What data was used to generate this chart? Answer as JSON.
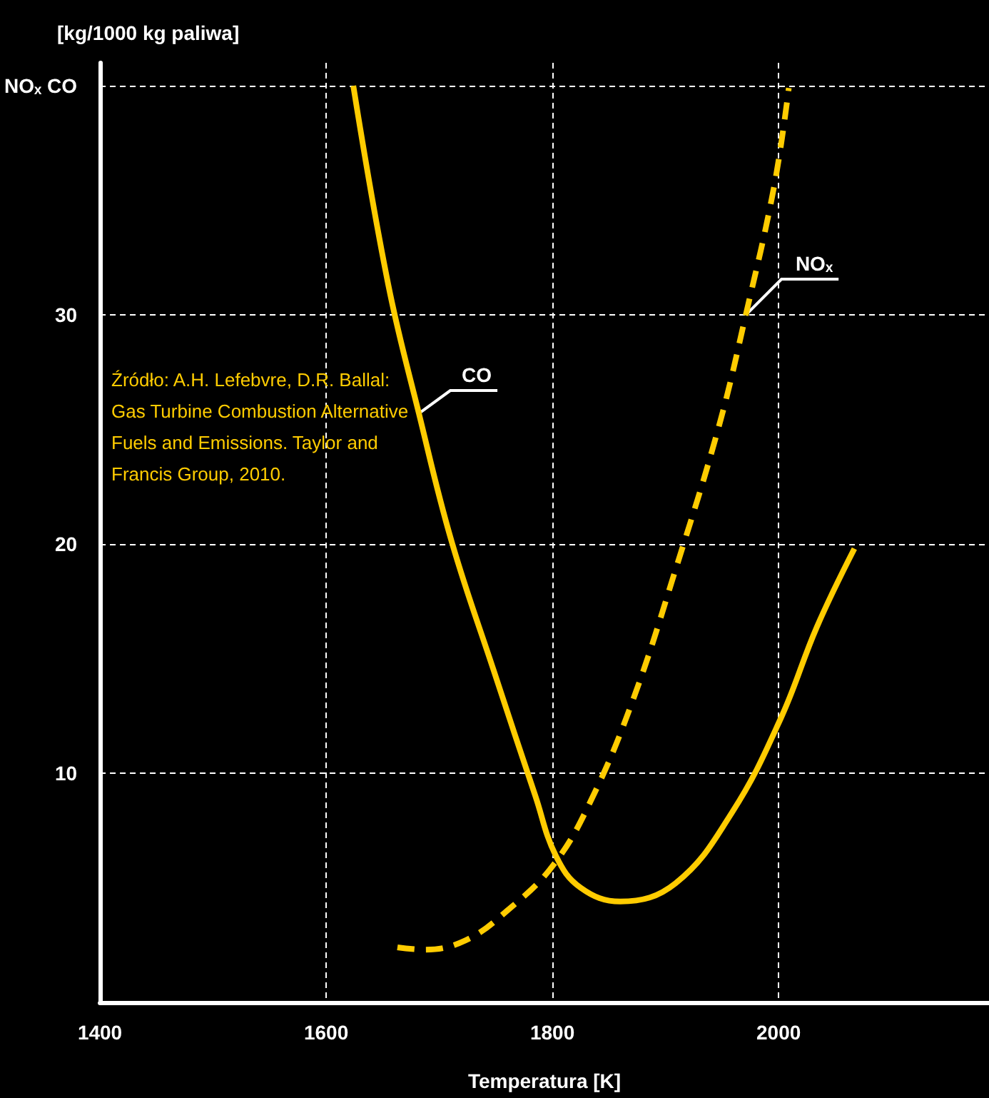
{
  "chart_data": {
    "type": "line",
    "xlabel": "Temperatura [K]",
    "ylabel": "[kg/1000 kg paliwa]",
    "annotations": [
      "Źródło: A.H. Lefebvre, D.R. Ballal: Gas Turbine Combustion Alternative Fuels and Emissions. Taylor and Francis Group, 2010."
    ],
    "series": [
      {
        "name": "CO",
        "color": "#ffcc00",
        "line_style": "solid",
        "x": [
          1624,
          1655,
          1682,
          1711,
          1748,
          1785,
          1803,
          1825,
          1860,
          1909,
          1959,
          2002,
          2034,
          2067
        ],
        "values": [
          40,
          31.3,
          25.7,
          20.1,
          14.5,
          9.0,
          6.4,
          5.0,
          4.4,
          5.2,
          8.3,
          12.4,
          16.4,
          19.8
        ]
      },
      {
        "name": "NOₓ",
        "color": "#ffcc00",
        "line_style": "dashed",
        "x": [
          1663,
          1686,
          1723,
          1760,
          1801,
          1835,
          1872,
          1909,
          1947,
          1971,
          1996,
          2009
        ],
        "values": [
          2.4,
          2.3,
          2.7,
          4.0,
          6.0,
          8.9,
          13.3,
          18.9,
          25.1,
          30,
          35.6,
          39.9
        ]
      }
    ],
    "xlim": [
      1400,
      2186
    ],
    "xticks": [
      1400,
      1600,
      1800,
      2000
    ],
    "ylim": [
      0,
      41
    ],
    "yticks": [
      10,
      20,
      30,
      {
        "value": 40,
        "label": "NOₓ CO"
      }
    ],
    "grid": true,
    "legend": false,
    "marker": "none"
  }
}
